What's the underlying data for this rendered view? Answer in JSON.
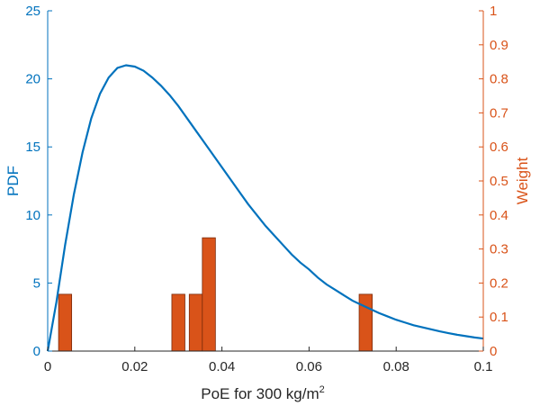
{
  "chart_data": {
    "type": "bar+line",
    "xlabel": {
      "main": "PoE for 300 kg/m",
      "sup": "2"
    },
    "ylabel_left": "PDF",
    "ylabel_right": "Weight",
    "xlim": [
      0,
      0.1
    ],
    "ylim_left": [
      0,
      25
    ],
    "ylim_right": [
      0,
      1
    ],
    "xticks": [
      0,
      0.02,
      0.04,
      0.06,
      0.08,
      0.1
    ],
    "xtick_labels": [
      "0",
      "0.02",
      "0.04",
      "0.06",
      "0.08",
      "0.1"
    ],
    "yticks_left": [
      0,
      5,
      10,
      15,
      20,
      25
    ],
    "ytick_labels_left": [
      "0",
      "5",
      "10",
      "15",
      "20",
      "25"
    ],
    "yticks_right": [
      0,
      0.1,
      0.2,
      0.3,
      0.4,
      0.5,
      0.6,
      0.7,
      0.8,
      0.9,
      1
    ],
    "ytick_labels_right": [
      "0",
      "0.1",
      "0.2",
      "0.3",
      "0.4",
      "0.5",
      "0.6",
      "0.7",
      "0.8",
      "0.9",
      "1"
    ],
    "grid": false,
    "colors": {
      "line": "#0072BD",
      "bars": "#D95319",
      "bar_edge": "#7a2a0a",
      "axis_x": "#262626"
    },
    "pdf_series": {
      "axis": "left",
      "x": [
        0,
        0.002,
        0.004,
        0.006,
        0.008,
        0.01,
        0.012,
        0.014,
        0.016,
        0.018,
        0.02,
        0.022,
        0.024,
        0.026,
        0.028,
        0.03,
        0.032,
        0.034,
        0.036,
        0.038,
        0.04,
        0.042,
        0.044,
        0.046,
        0.048,
        0.05,
        0.052,
        0.054,
        0.056,
        0.058,
        0.06,
        0.062,
        0.064,
        0.066,
        0.068,
        0.07,
        0.072,
        0.074,
        0.076,
        0.078,
        0.08,
        0.082,
        0.084,
        0.086,
        0.088,
        0.09,
        0.092,
        0.094,
        0.096,
        0.098,
        0.1
      ],
      "y": [
        0,
        3.6,
        7.8,
        11.5,
        14.6,
        17.1,
        18.9,
        20.1,
        20.8,
        21.0,
        20.9,
        20.6,
        20.1,
        19.5,
        18.8,
        18.0,
        17.1,
        16.2,
        15.3,
        14.4,
        13.5,
        12.6,
        11.7,
        10.8,
        10.0,
        9.2,
        8.5,
        7.8,
        7.1,
        6.5,
        6.0,
        5.4,
        4.9,
        4.5,
        4.1,
        3.7,
        3.4,
        3.1,
        2.8,
        2.55,
        2.3,
        2.1,
        1.9,
        1.75,
        1.6,
        1.45,
        1.32,
        1.2,
        1.1,
        1.0,
        0.92
      ]
    },
    "weights": {
      "axis": "right",
      "bar_width": 0.003,
      "x": [
        0.004,
        0.03,
        0.034,
        0.037,
        0.073
      ],
      "values": [
        0.167,
        0.167,
        0.167,
        0.333,
        0.167
      ]
    }
  }
}
